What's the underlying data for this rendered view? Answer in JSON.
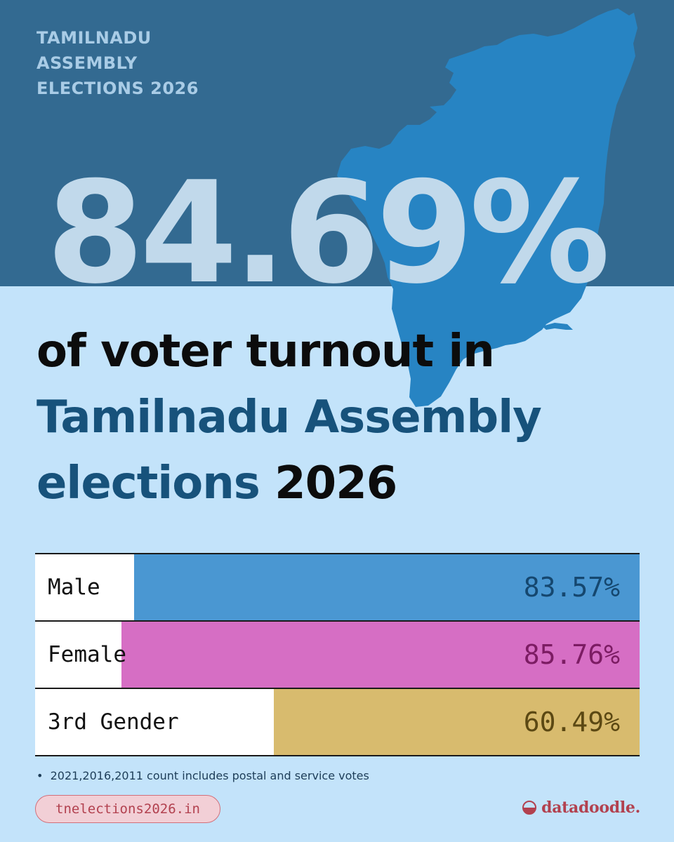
{
  "kicker": {
    "line1": "TAMILNADU",
    "line2": "ASSEMBLY",
    "line3": "ELECTIONS 2026"
  },
  "headline_stat": "84.69%",
  "headline": {
    "line1": "of voter turnout in",
    "line2": "Tamilnadu Assembly",
    "line3_a": "elections",
    "line3_b": "2026"
  },
  "chart_data": {
    "type": "bar",
    "orientation": "horizontal",
    "categories": [
      "Male",
      "Female",
      "3rd Gender"
    ],
    "values": [
      83.57,
      85.76,
      60.49
    ],
    "value_labels": [
      "83.57%",
      "85.76%",
      "60.49%"
    ],
    "colors": [
      "#4a97d2",
      "#d66ec4",
      "#d8bb6e"
    ],
    "label_colors": [
      "#15476f",
      "#7c1c63",
      "#5b4813"
    ],
    "xlim": [
      0,
      100
    ]
  },
  "note": "2021,2016,2011 count includes postal  and service votes",
  "website": "tnelections2026.in",
  "brand": "datadoodle.",
  "colors": {
    "top_band": "#336a91",
    "background": "#c3e3fa",
    "map": "#2784c3",
    "accent_dark_blue": "#17527b",
    "brand_red": "#b2414f"
  }
}
